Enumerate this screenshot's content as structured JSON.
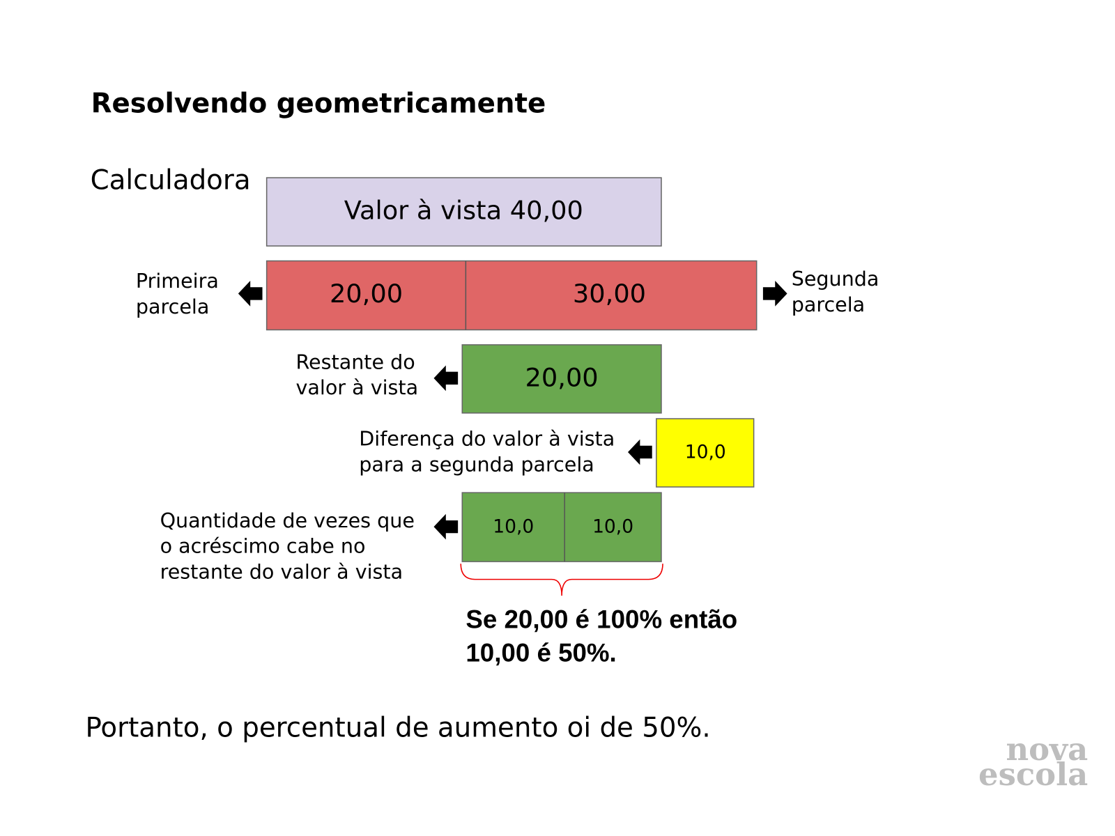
{
  "header": {
    "title": "Resolvendo geometricamente",
    "subtitle": "Calculadora"
  },
  "boxes": {
    "cash_value": "Valor à vista 40,00",
    "first_installment": "20,00",
    "second_installment": "30,00",
    "remaining": "20,00",
    "difference": "10,0",
    "parts": [
      "10,0",
      "10,0"
    ]
  },
  "labels": {
    "first": [
      "Primeira",
      "parcela"
    ],
    "second": [
      "Segunda",
      "parcela"
    ],
    "remaining": [
      "Restante do",
      "valor à vista"
    ],
    "difference": [
      "Diferença do valor à vista",
      "para a segunda parcela"
    ],
    "times": [
      "Quantidade de vezes que",
      "o acréscimo cabe no",
      "restante do valor à vista"
    ]
  },
  "conclusion": [
    "Se 20,00 é 100% então",
    "10,00 é 50%."
  ],
  "footer": "Portanto, o percentual de aumento  oi de 50%.",
  "logo": [
    "nova",
    "escola"
  ]
}
